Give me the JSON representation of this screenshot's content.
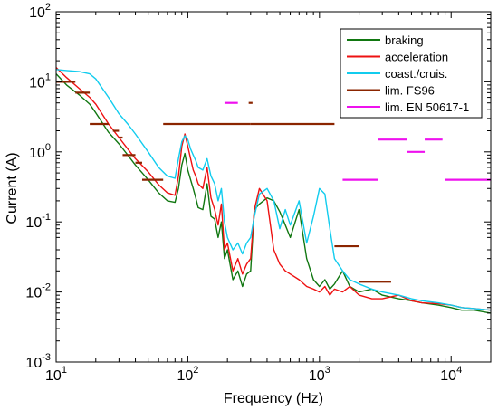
{
  "chart_data": {
    "type": "line",
    "x_scale": "log",
    "y_scale": "log",
    "xlabel": "Frequency (Hz)",
    "ylabel": "Current (A)",
    "xlim": [
      10,
      20000
    ],
    "ylim": [
      0.001,
      100
    ],
    "x_ticks": [
      {
        "value": 10,
        "base": "10",
        "exp": "1"
      },
      {
        "value": 100,
        "base": "10",
        "exp": "2"
      },
      {
        "value": 1000,
        "base": "10",
        "exp": "3"
      },
      {
        "value": 10000,
        "base": "10",
        "exp": "4"
      }
    ],
    "y_ticks": [
      {
        "value": 0.001,
        "base": "10",
        "exp": "-3"
      },
      {
        "value": 0.01,
        "base": "10",
        "exp": "-2"
      },
      {
        "value": 0.1,
        "base": "10",
        "exp": "-1"
      },
      {
        "value": 1,
        "base": "10",
        "exp": "0"
      },
      {
        "value": 10,
        "base": "10",
        "exp": "1"
      },
      {
        "value": 100,
        "base": "10",
        "exp": "2"
      }
    ],
    "grid": false,
    "legend_position": "top-right",
    "series": [
      {
        "name": "braking",
        "color": "#117711",
        "x": [
          10,
          12,
          15,
          18,
          20,
          25,
          30,
          35,
          40,
          50,
          60,
          70,
          80,
          85,
          90,
          95,
          100,
          105,
          110,
          115,
          120,
          130,
          140,
          150,
          160,
          170,
          180,
          190,
          200,
          220,
          240,
          260,
          280,
          300,
          320,
          350,
          400,
          450,
          500,
          550,
          600,
          700,
          800,
          900,
          1000,
          1100,
          1200,
          1300,
          1500,
          1700,
          2000,
          2500,
          3000,
          4000,
          5000,
          6000,
          8000,
          10000,
          12000,
          15000,
          20000
        ],
        "y": [
          13,
          9,
          6.5,
          4.8,
          3.6,
          1.9,
          1.3,
          0.9,
          0.65,
          0.4,
          0.26,
          0.2,
          0.19,
          0.3,
          0.65,
          0.95,
          0.55,
          0.4,
          0.3,
          0.22,
          0.16,
          0.15,
          0.35,
          0.12,
          0.11,
          0.06,
          0.1,
          0.03,
          0.04,
          0.015,
          0.02,
          0.012,
          0.018,
          0.02,
          0.15,
          0.18,
          0.22,
          0.2,
          0.14,
          0.09,
          0.06,
          0.15,
          0.03,
          0.015,
          0.012,
          0.015,
          0.011,
          0.013,
          0.02,
          0.012,
          0.01,
          0.011,
          0.009,
          0.008,
          0.0075,
          0.007,
          0.0065,
          0.006,
          0.0055,
          0.0055,
          0.005
        ]
      },
      {
        "name": "acceleration",
        "color": "#ee1111",
        "x": [
          10,
          12,
          15,
          18,
          20,
          25,
          30,
          35,
          40,
          50,
          60,
          70,
          80,
          85,
          90,
          95,
          100,
          105,
          110,
          115,
          120,
          130,
          140,
          150,
          160,
          170,
          180,
          190,
          200,
          220,
          240,
          260,
          280,
          300,
          320,
          350,
          400,
          450,
          500,
          550,
          600,
          700,
          800,
          900,
          1000,
          1100,
          1200,
          1300,
          1500,
          1700,
          2000,
          2500,
          3000,
          4000,
          5000,
          6000,
          8000,
          10000,
          12000,
          15000,
          20000
        ],
        "y": [
          16,
          11.5,
          8,
          6,
          4.8,
          2.5,
          1.6,
          1.1,
          0.8,
          0.52,
          0.34,
          0.26,
          0.24,
          0.45,
          1.2,
          1.8,
          1.2,
          0.8,
          0.55,
          0.45,
          0.35,
          0.3,
          0.6,
          0.22,
          0.15,
          0.09,
          0.18,
          0.04,
          0.05,
          0.02,
          0.03,
          0.018,
          0.025,
          0.03,
          0.15,
          0.3,
          0.2,
          0.04,
          0.025,
          0.02,
          0.018,
          0.015,
          0.012,
          0.011,
          0.01,
          0.012,
          0.009,
          0.011,
          0.01,
          0.012,
          0.009,
          0.008,
          0.008,
          0.009,
          0.0075,
          0.007,
          0.0068,
          0.0065,
          0.006,
          0.0058,
          0.0055
        ]
      },
      {
        "name": "coast./cruis.",
        "color": "#11ccee",
        "x": [
          10,
          12,
          15,
          18,
          20,
          25,
          30,
          35,
          40,
          50,
          60,
          70,
          80,
          85,
          90,
          95,
          100,
          105,
          110,
          115,
          120,
          130,
          140,
          150,
          160,
          170,
          180,
          190,
          200,
          220,
          240,
          260,
          280,
          300,
          320,
          350,
          400,
          450,
          500,
          550,
          600,
          700,
          800,
          900,
          1000,
          1100,
          1200,
          1300,
          1500,
          1700,
          2000,
          2500,
          3000,
          4000,
          5000,
          6000,
          8000,
          10000,
          12000,
          15000,
          20000
        ],
        "y": [
          15,
          14.5,
          14,
          13,
          11,
          6,
          3.5,
          2.5,
          1.8,
          1.0,
          0.6,
          0.45,
          0.42,
          0.8,
          1.4,
          1.7,
          1.5,
          1.1,
          0.9,
          0.75,
          0.6,
          0.55,
          0.8,
          0.45,
          0.35,
          0.2,
          0.3,
          0.1,
          0.06,
          0.04,
          0.05,
          0.035,
          0.05,
          0.06,
          0.12,
          0.25,
          0.3,
          0.2,
          0.08,
          0.15,
          0.09,
          0.2,
          0.05,
          0.12,
          0.3,
          0.25,
          0.08,
          0.03,
          0.02,
          0.015,
          0.013,
          0.011,
          0.01,
          0.009,
          0.008,
          0.0075,
          0.007,
          0.0065,
          0.006,
          0.0058,
          0.0055
        ]
      }
    ],
    "limit_series": [
      {
        "name": "lim. FS96",
        "color": "#8b2500",
        "segments": [
          {
            "x": [
              10,
              14
            ],
            "y": 10
          },
          {
            "x": [
              14,
              18
            ],
            "y": 7
          },
          {
            "x": [
              18,
              25
            ],
            "y": 2.5
          },
          {
            "x": [
              27,
              30
            ],
            "y": 2
          },
          {
            "x": [
              30,
              32
            ],
            "y": 1.6
          },
          {
            "x": [
              32,
              40
            ],
            "y": 0.9
          },
          {
            "x": [
              40,
              45
            ],
            "y": 0.7
          },
          {
            "x": [
              45,
              65
            ],
            "y": 0.4
          },
          {
            "x": [
              65,
              300
            ],
            "y": 2.5
          },
          {
            "x": [
              290,
              310
            ],
            "y": 5
          },
          {
            "x": [
              300,
              1300
            ],
            "y": 2.5
          },
          {
            "x": [
              1300,
              2000
            ],
            "y": 0.045
          },
          {
            "x": [
              2000,
              3500
            ],
            "y": 0.014
          }
        ]
      },
      {
        "name": "lim. EN 50617-1",
        "color": "#ee11ee",
        "segments": [
          {
            "x": [
              190,
              240
            ],
            "y": 5
          },
          {
            "x": [
              1500,
              2800
            ],
            "y": 0.4
          },
          {
            "x": [
              2800,
              4600
            ],
            "y": 1.5
          },
          {
            "x": [
              4600,
              6300
            ],
            "y": 1.0
          },
          {
            "x": [
              6300,
              8600
            ],
            "y": 1.5
          },
          {
            "x": [
              9000,
              20000
            ],
            "y": 0.4
          }
        ]
      }
    ]
  }
}
